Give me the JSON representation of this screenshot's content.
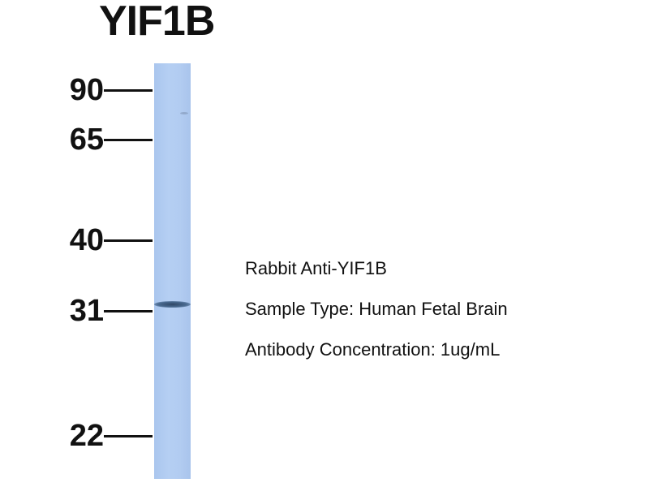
{
  "title": "YIF1B",
  "markers": [
    {
      "label": "90"
    },
    {
      "label": "65"
    },
    {
      "label": "40"
    },
    {
      "label": "31"
    },
    {
      "label": "22"
    }
  ],
  "info": {
    "antibody": "Rabbit Anti-YIF1B",
    "sample": "Sample Type: Human Fetal Brain",
    "concentration": "Antibody Concentration: 1ug/mL"
  },
  "colors": {
    "lane": "#b2ccf1",
    "band": "#2f4766"
  }
}
